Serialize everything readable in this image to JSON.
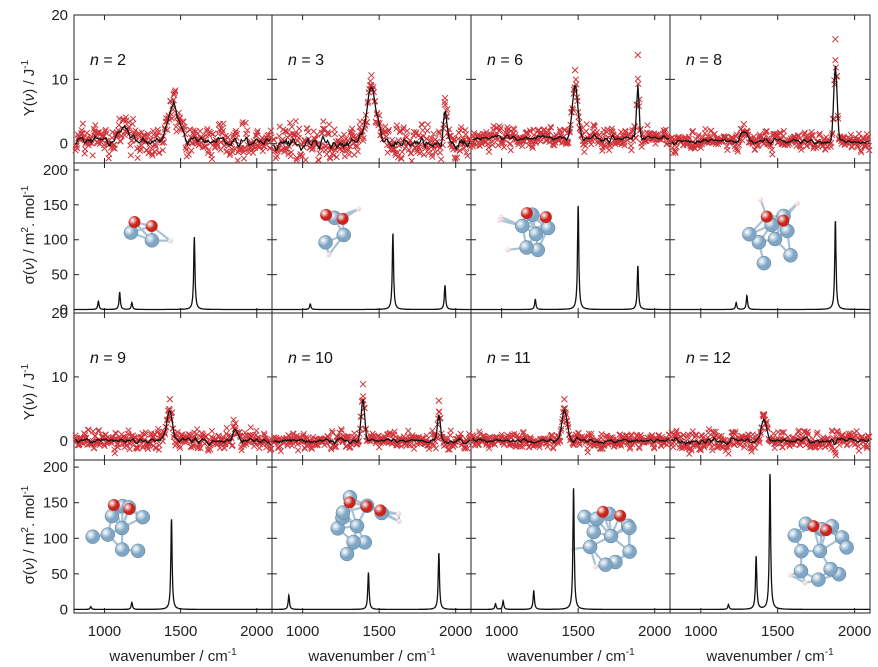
{
  "chart_data": {
    "type": "line",
    "x_axis": {
      "label": "wavenumber / cm",
      "label_sup": "-1",
      "range": [
        800,
        2100
      ],
      "ticks": [
        1000,
        1500,
        2000
      ]
    },
    "y_axis_Y": {
      "label_pre": "Y(",
      "label_var": "ν",
      "label_post": ") / J",
      "label_sup": "-1",
      "range": [
        -3,
        20
      ],
      "ticks": [
        0,
        10,
        20
      ]
    },
    "y_axis_sigma": {
      "label_pre": "σ(",
      "label_var": "ν",
      "label_post": ") / m",
      "label_sup2": "2",
      "label_mid": ". mol",
      "label_sup": "-1",
      "range": [
        -5,
        210
      ],
      "ticks": [
        0,
        50,
        100,
        150,
        200
      ]
    },
    "panels": [
      {
        "label": "n = 2",
        "n": 2,
        "experimental": {
          "baseline": 0.5,
          "peaks": [
            {
              "x": 1455,
              "y": 5.5,
              "w": 45
            },
            {
              "x": 1120,
              "y": 2.2,
              "w": 40
            }
          ],
          "noise": 1.6
        },
        "calculated": {
          "peaks": [
            {
              "x": 960,
              "y": 12
            },
            {
              "x": 1100,
              "y": 25
            },
            {
              "x": 1180,
              "y": 10
            },
            {
              "x": 1590,
              "y": 105
            }
          ]
        },
        "cluster": {
          "blue": 2,
          "red": 2,
          "white": 1
        }
      },
      {
        "label": "n = 3",
        "n": 3,
        "experimental": {
          "baseline": 0.0,
          "peaks": [
            {
              "x": 1450,
              "y": 8.5,
              "w": 50
            },
            {
              "x": 1930,
              "y": 5.5,
              "w": 15
            }
          ],
          "noise": 1.8
        },
        "calculated": {
          "peaks": [
            {
              "x": 1050,
              "y": 8
            },
            {
              "x": 1590,
              "y": 110
            },
            {
              "x": 1930,
              "y": 35
            }
          ]
        },
        "cluster": {
          "blue": 3,
          "red": 2,
          "white": 2
        }
      },
      {
        "label": "n = 6",
        "n": 6,
        "experimental": {
          "baseline": 0.8,
          "peaks": [
            {
              "x": 1480,
              "y": 8.5,
              "w": 25
            },
            {
              "x": 1890,
              "y": 10.5,
              "w": 10
            }
          ],
          "noise": 1.1
        },
        "calculated": {
          "peaks": [
            {
              "x": 1220,
              "y": 15
            },
            {
              "x": 1500,
              "y": 150
            },
            {
              "x": 1890,
              "y": 63
            }
          ]
        },
        "cluster": {
          "blue": 6,
          "red": 2,
          "white": 3
        }
      },
      {
        "label": "n = 8",
        "n": 8,
        "experimental": {
          "baseline": 0.3,
          "peaks": [
            {
              "x": 1280,
              "y": 1.8,
              "w": 30
            },
            {
              "x": 1875,
              "y": 13,
              "w": 15
            }
          ],
          "noise": 0.9
        },
        "calculated": {
          "peaks": [
            {
              "x": 1230,
              "y": 10
            },
            {
              "x": 1300,
              "y": 20
            },
            {
              "x": 1875,
              "y": 128
            }
          ]
        },
        "cluster": {
          "blue": 8,
          "red": 2,
          "white": 2
        }
      },
      {
        "label": "n = 9",
        "n": 9,
        "experimental": {
          "baseline": 0.0,
          "peaks": [
            {
              "x": 1430,
              "y": 5.0,
              "w": 25
            },
            {
              "x": 1860,
              "y": 1.8,
              "w": 20
            }
          ],
          "noise": 1.0
        },
        "calculated": {
          "peaks": [
            {
              "x": 910,
              "y": 4
            },
            {
              "x": 1180,
              "y": 10
            },
            {
              "x": 1440,
              "y": 128
            }
          ]
        },
        "cluster": {
          "blue": 9,
          "red": 2,
          "white": 0
        }
      },
      {
        "label": "n = 10",
        "n": 10,
        "experimental": {
          "baseline": 0.0,
          "peaks": [
            {
              "x": 1395,
              "y": 7.0,
              "w": 15
            },
            {
              "x": 1890,
              "y": 4.8,
              "w": 13
            }
          ],
          "noise": 0.9
        },
        "calculated": {
          "peaks": [
            {
              "x": 910,
              "y": 20
            },
            {
              "x": 1430,
              "y": 52
            },
            {
              "x": 1890,
              "y": 80
            }
          ]
        },
        "cluster": {
          "blue": 10,
          "red": 3,
          "white": 2
        }
      },
      {
        "label": "n = 11",
        "n": 11,
        "experimental": {
          "baseline": 0.0,
          "peaks": [
            {
              "x": 1410,
              "y": 5.0,
              "w": 25
            }
          ],
          "noise": 0.8
        },
        "calculated": {
          "peaks": [
            {
              "x": 960,
              "y": 8
            },
            {
              "x": 1010,
              "y": 12
            },
            {
              "x": 1210,
              "y": 27
            },
            {
              "x": 1470,
              "y": 172
            }
          ]
        },
        "cluster": {
          "blue": 11,
          "red": 2,
          "white": 2
        }
      },
      {
        "label": "n = 12",
        "n": 12,
        "experimental": {
          "baseline": 0.0,
          "peaks": [
            {
              "x": 1410,
              "y": 3.0,
              "w": 25
            }
          ],
          "noise": 1.0
        },
        "calculated": {
          "peaks": [
            {
              "x": 1180,
              "y": 7
            },
            {
              "x": 1360,
              "y": 75
            },
            {
              "x": 1450,
              "y": 192
            }
          ]
        },
        "cluster": {
          "blue": 12,
          "red": 2,
          "white": 2
        }
      }
    ],
    "colors": {
      "experimental_markers": "#d0343a",
      "experimental_line": "#111111",
      "calculated_line": "#111111",
      "atom_blue": "#7fa6c4",
      "atom_red": "#c9251d",
      "atom_white": "#f2d6d6",
      "bond": "#a9c3d6"
    },
    "grid": false
  }
}
